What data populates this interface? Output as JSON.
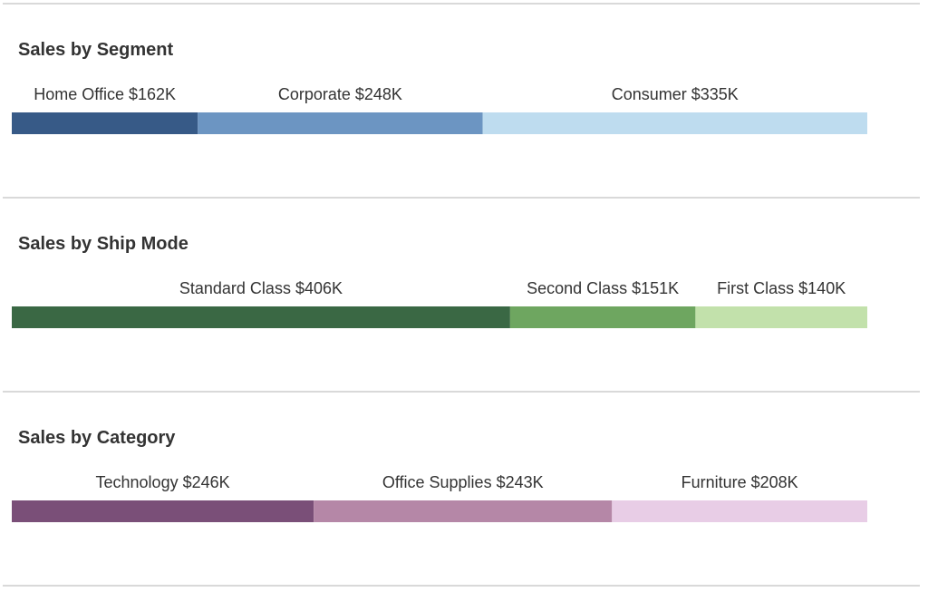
{
  "colors": {
    "segment": [
      "#375a87",
      "#6c95c2",
      "#bedcef"
    ],
    "ship_mode": [
      "#3a6844",
      "#6ea660",
      "#c2e1ab"
    ],
    "category": [
      "#7a4f78",
      "#b587a7",
      "#e8cde6"
    ]
  },
  "chart_data": [
    {
      "type": "bar",
      "orientation": "horizontal-stacked",
      "title": "Sales by Segment",
      "categories": [
        "Home Office",
        "Corporate",
        "Consumer"
      ],
      "values": [
        162,
        248,
        335
      ],
      "labels": [
        "Home Office $162K",
        "Corporate $248K",
        "Consumer $335K"
      ],
      "unit": "$K",
      "xlabel": "",
      "ylabel": ""
    },
    {
      "type": "bar",
      "orientation": "horizontal-stacked",
      "title": "Sales by Ship Mode",
      "categories": [
        "Standard Class",
        "Second Class",
        "First Class"
      ],
      "values": [
        406,
        151,
        140
      ],
      "labels": [
        "Standard Class $406K",
        "Second Class $151K",
        "First Class $140K"
      ],
      "unit": "$K",
      "xlabel": "",
      "ylabel": ""
    },
    {
      "type": "bar",
      "orientation": "horizontal-stacked",
      "title": "Sales by Category",
      "categories": [
        "Technology",
        "Office Supplies",
        "Furniture"
      ],
      "values": [
        246,
        243,
        208
      ],
      "labels": [
        "Technology $246K",
        "Office Supplies $243K",
        "Furniture $208K"
      ],
      "unit": "$K",
      "xlabel": "",
      "ylabel": ""
    }
  ]
}
